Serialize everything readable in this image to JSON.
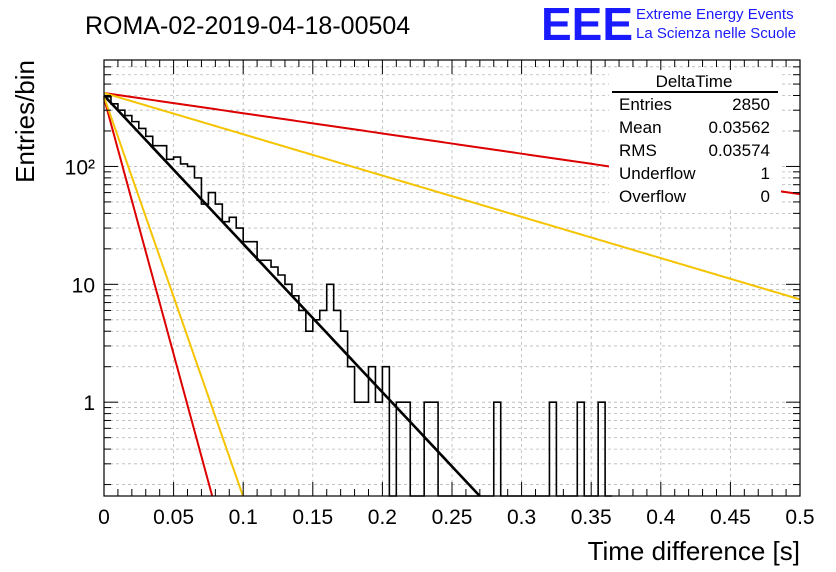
{
  "header": {
    "run_title": "ROMA-02-2019-04-18-00504",
    "logo_text": "EEE",
    "logo_line1": "Extreme Energy Events",
    "logo_line2": "La Scienza nelle Scuole"
  },
  "stats": {
    "title": "DeltaTime",
    "rows": [
      {
        "label": "Entries",
        "value": "2850"
      },
      {
        "label": "Mean",
        "value": "0.03562"
      },
      {
        "label": "RMS",
        "value": "0.03574"
      },
      {
        "label": "Underflow",
        "value": "1"
      },
      {
        "label": "Overflow",
        "value": "0"
      }
    ]
  },
  "colors": {
    "histogram": "#000000",
    "fit": "#000000",
    "red_curve": "#dd0000",
    "yellow_curve": "#f5c400",
    "logo": "#1a1aff"
  },
  "chart_data": {
    "type": "line",
    "xlabel": "Time difference [s]",
    "ylabel": "Entries/bin",
    "xlim": [
      0,
      0.5
    ],
    "ylim": [
      0.16,
      800
    ],
    "y_scale": "log",
    "grid": true,
    "x_ticks": [
      "0",
      "0.05",
      "0.1",
      "0.15",
      "0.2",
      "0.25",
      "0.3",
      "0.35",
      "0.4",
      "0.45",
      "0.5"
    ],
    "y_ticks": [
      "1",
      "10",
      "10²"
    ],
    "histogram": {
      "bin_width": 0.005,
      "values": [
        390,
        340,
        300,
        270,
        240,
        210,
        180,
        170,
        150,
        135,
        120,
        105,
        100,
        80,
        68,
        60,
        48,
        40,
        37,
        30,
        23,
        23,
        20,
        16,
        14,
        12,
        10,
        9,
        8,
        6,
        6,
        5,
        4,
        2,
        3,
        1,
        1,
        2,
        1,
        0,
        0,
        0,
        1,
        0,
        0,
        0,
        0,
        0,
        0,
        0,
        0,
        0,
        0,
        0,
        0,
        0,
        0,
        0,
        0,
        0,
        0,
        0,
        0,
        0,
        0,
        0,
        0,
        0,
        0,
        0,
        0,
        0,
        0
      ]
    },
    "histogram_extra": {
      "bin_width": 0.005,
      "bins": [
        {
          "x": 0.035,
          "value": 150
        },
        {
          "x": 0.045,
          "value": 115
        },
        {
          "x": 0.07,
          "value": 48
        },
        {
          "x": 0.085,
          "value": 34
        },
        {
          "x": 0.1,
          "value": 23
        },
        {
          "x": 0.11,
          "value": 16
        },
        {
          "x": 0.12,
          "value": 14
        },
        {
          "x": 0.125,
          "value": 12
        },
        {
          "x": 0.13,
          "value": 10
        },
        {
          "x": 0.135,
          "value": 8
        },
        {
          "x": 0.14,
          "value": 6
        },
        {
          "x": 0.145,
          "value": 4
        },
        {
          "x": 0.15,
          "value": 5
        },
        {
          "x": 0.155,
          "value": 6
        },
        {
          "x": 0.16,
          "value": 10
        },
        {
          "x": 0.165,
          "value": 6
        },
        {
          "x": 0.17,
          "value": 4
        },
        {
          "x": 0.175,
          "value": 2
        },
        {
          "x": 0.18,
          "value": 1
        },
        {
          "x": 0.185,
          "value": 1
        },
        {
          "x": 0.19,
          "value": 2
        },
        {
          "x": 0.195,
          "value": 1
        },
        {
          "x": 0.2,
          "value": 2
        },
        {
          "x": 0.215,
          "value": 1
        },
        {
          "x": 0.23,
          "value": 1
        },
        {
          "x": 0.235,
          "value": 1
        },
        {
          "x": 0.28,
          "value": 1
        },
        {
          "x": 0.32,
          "value": 1
        },
        {
          "x": 0.34,
          "value": 1
        },
        {
          "x": 0.355,
          "value": 1
        }
      ]
    },
    "curves": [
      {
        "color": "black",
        "A": 400,
        "tau": 0.0345,
        "x_end": 0.28
      },
      {
        "color": "red",
        "A": 420,
        "tau": 0.253,
        "x_end": 0.5
      },
      {
        "color": "yellow",
        "A": 420,
        "tau": 0.124,
        "x_end": 0.5
      },
      {
        "color": "red",
        "A": 380,
        "tau": 0.01,
        "x_end": 0.5
      },
      {
        "color": "yellow",
        "A": 390,
        "tau": 0.0128,
        "x_end": 0.5
      }
    ]
  }
}
